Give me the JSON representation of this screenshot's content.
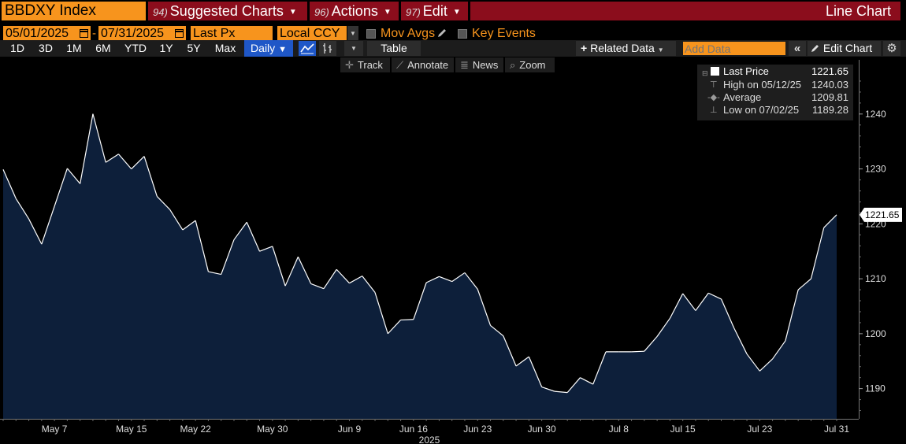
{
  "toolbar1": {
    "ticker": "BBDXY Index",
    "suggested": {
      "num": "94)",
      "label": "Suggested Charts"
    },
    "actions": {
      "num": "96)",
      "label": "Actions"
    },
    "edit": {
      "num": "97)",
      "label": "Edit"
    },
    "chart_type": "Line Chart"
  },
  "toolbar2": {
    "start_date": "05/01/2025",
    "separator": "-",
    "end_date": "07/31/2025",
    "field": "Last Px",
    "currency": "Local CCY",
    "mov_avgs": "Mov Avgs",
    "key_events": "Key Events"
  },
  "toolbar3": {
    "periods": [
      "1D",
      "3D",
      "1M",
      "6M",
      "YTD",
      "1Y",
      "5Y",
      "Max"
    ],
    "frequency": "Daily",
    "table": "Table",
    "related": "Related Data",
    "add_data_placeholder": "Add Data",
    "edit_chart": "Edit Chart"
  },
  "tools": {
    "track": "Track",
    "annotate": "Annotate",
    "news": "News",
    "zoom": "Zoom"
  },
  "legend": {
    "last": {
      "label": "Last Price",
      "value": "1221.65"
    },
    "high": {
      "label": "High on 05/12/25",
      "value": "1240.03"
    },
    "average": {
      "label": "Average",
      "value": "1209.81"
    },
    "low": {
      "label": "Low on 07/02/25",
      "value": "1189.28"
    }
  },
  "colors": {
    "orange": "#f7941d",
    "red": "#8b0d1c",
    "fill": "#0d1f3a",
    "line": "#ffffff",
    "blue": "#1f57c7"
  },
  "chart_data": {
    "type": "area",
    "title": "",
    "ylim": [
      1184.5,
      1247
    ],
    "yticks": [
      1190,
      1200,
      1210,
      1220,
      1230,
      1240
    ],
    "x_labels": [
      {
        "label": "May 7",
        "index": 4
      },
      {
        "label": "May 15",
        "index": 10
      },
      {
        "label": "May 22",
        "index": 15
      },
      {
        "label": "May 30",
        "index": 21
      },
      {
        "label": "Jun 9",
        "index": 27
      },
      {
        "label": "Jun 16",
        "index": 32
      },
      {
        "label": "Jun 23",
        "index": 37
      },
      {
        "label": "Jun 30",
        "index": 42
      },
      {
        "label": "Jul 8",
        "index": 48
      },
      {
        "label": "Jul 15",
        "index": 53
      },
      {
        "label": "Jul 23",
        "index": 59
      },
      {
        "label": "Jul 31",
        "index": 65
      }
    ],
    "year_label": "2025",
    "last_value_label": "1221.65",
    "series": [
      {
        "values": [
          1229.9,
          1224.6,
          1220.9,
          1216.3,
          1223.2,
          1230.1,
          1227.3,
          1240.03,
          1231.2,
          1232.7,
          1230.0,
          1232.3,
          1225.0,
          1222.6,
          1218.9,
          1220.6,
          1211.3,
          1210.8,
          1217.1,
          1220.3,
          1215.0,
          1215.9,
          1208.7,
          1214.0,
          1209.1,
          1208.2,
          1211.7,
          1209.2,
          1210.5,
          1207.5,
          1200.0,
          1202.5,
          1202.6,
          1209.3,
          1210.4,
          1209.5,
          1211.1,
          1208.1,
          1201.5,
          1199.6,
          1194.1,
          1195.8,
          1190.3,
          1189.5,
          1189.28,
          1192.0,
          1190.8,
          1196.7,
          1196.7,
          1196.7,
          1196.8,
          1199.5,
          1202.8,
          1207.3,
          1204.2,
          1207.4,
          1206.3,
          1201.0,
          1196.3,
          1193.2,
          1195.4,
          1198.7,
          1208.0,
          1210.0,
          1219.3,
          1221.65
        ]
      }
    ]
  }
}
